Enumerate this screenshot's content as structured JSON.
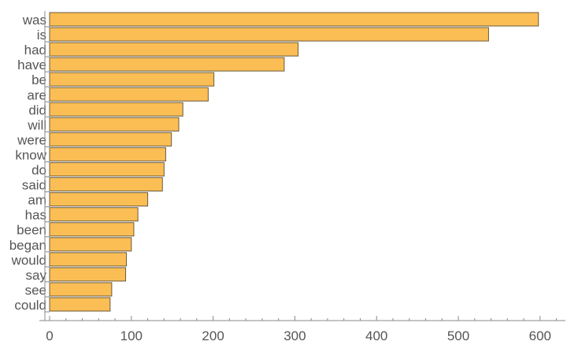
{
  "chart_data": {
    "type": "bar",
    "orientation": "horizontal",
    "categories": [
      "was",
      "is",
      "had",
      "have",
      "be",
      "are",
      "did",
      "will",
      "were",
      "know",
      "do",
      "said",
      "am",
      "has",
      "been",
      "began",
      "would",
      "say",
      "see",
      "could"
    ],
    "values": [
      598,
      537,
      304,
      287,
      201,
      194,
      163,
      158,
      149,
      142,
      140,
      138,
      120,
      108,
      103,
      100,
      94,
      93,
      76,
      74
    ],
    "xlim": [
      0,
      630
    ],
    "xticks": [
      "0",
      "100",
      "200",
      "300",
      "400",
      "500",
      "600"
    ],
    "grid": false,
    "bar_color": "#FBBE55",
    "edge_color": "#6b5a3a"
  }
}
